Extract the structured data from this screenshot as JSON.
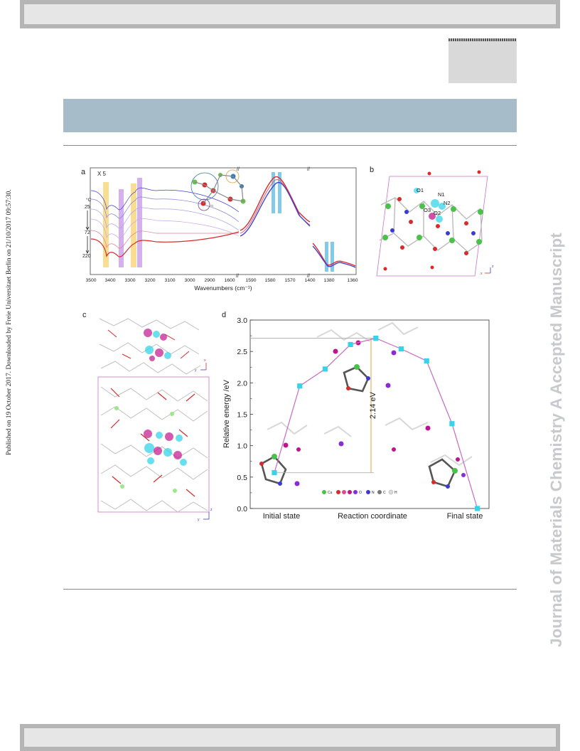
{
  "side_note": "Published on 19 October 2017. Downloaded by Freie Universitaet Berlin on 21/10/2017 09:57:30.",
  "watermark": "Journal of Materials Chemistry A Accepted Manuscript",
  "figure": {
    "panel_labels": [
      "a",
      "b",
      "c",
      "d"
    ],
    "panel_a": {
      "scale_note": "X 5",
      "temp_unit": "°C",
      "temps": [
        "25",
        "72",
        "220"
      ],
      "atoms": [
        "O1",
        "N1",
        "N2",
        "O3",
        "O2"
      ],
      "xlabel": "Wavenumbers (cm⁻¹)",
      "ticks_left": [
        "3500",
        "3400",
        "3300",
        "3200",
        "3100",
        "3000",
        "2900",
        "1600"
      ],
      "ticks_mid": [
        "1590",
        "1580",
        "1570",
        "1400"
      ],
      "ticks_right": [
        "1380",
        "1360"
      ]
    },
    "panel_b": {
      "atom_labels": [
        "O1",
        "N1",
        "N2",
        "O3",
        "O2"
      ],
      "axis": [
        "x",
        "z"
      ]
    },
    "panel_c": {
      "axis_top": [
        "y",
        "x"
      ],
      "axis_bottom": [
        "y",
        "z"
      ]
    },
    "legend_atoms": [
      "Cu",
      "O",
      "N",
      "C",
      "H"
    ],
    "colors": {
      "red": "#d92b2b",
      "blue": "#3a3ad6",
      "cyan": "#35d4e8",
      "magenta": "#c0148c",
      "purple": "#8a2bd6",
      "yellow": "#f5c84a",
      "pink": "#d070c8"
    }
  },
  "chart_data": {
    "type": "line",
    "panel": "d",
    "ylabel": "Relative energy /eV",
    "x_categories": [
      "Initial state",
      "Reaction coordinate",
      "Final state"
    ],
    "y_ticks": [
      "0.0",
      "0.5",
      "1.0",
      "1.5",
      "2.0",
      "2.5",
      "3.0"
    ],
    "ylim": [
      0,
      3.0
    ],
    "x": [
      1,
      2,
      3,
      4,
      5,
      6,
      7,
      8,
      9
    ],
    "values": [
      0.57,
      1.95,
      2.22,
      2.61,
      2.71,
      2.54,
      2.35,
      1.35,
      0.0
    ],
    "annotation": "2.14 eV",
    "marker": "square",
    "marker_color": "#35d4e8",
    "line_color": "#c86ac2"
  }
}
